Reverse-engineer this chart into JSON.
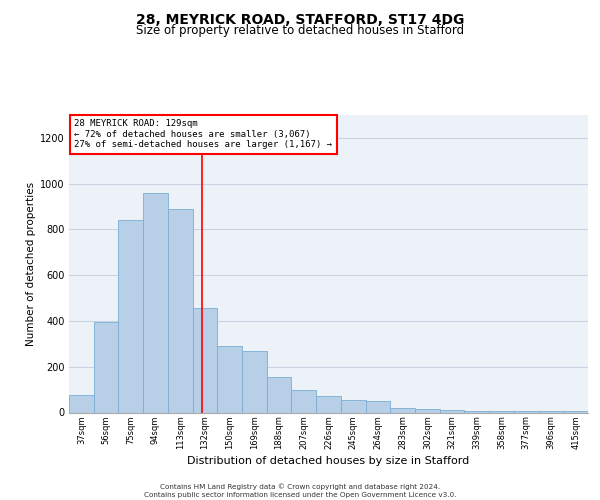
{
  "title1": "28, MEYRICK ROAD, STAFFORD, ST17 4DG",
  "title2": "Size of property relative to detached houses in Stafford",
  "xlabel": "Distribution of detached houses by size in Stafford",
  "ylabel": "Number of detached properties",
  "categories": [
    "37sqm",
    "56sqm",
    "75sqm",
    "94sqm",
    "113sqm",
    "132sqm",
    "150sqm",
    "169sqm",
    "188sqm",
    "207sqm",
    "226sqm",
    "245sqm",
    "264sqm",
    "283sqm",
    "302sqm",
    "321sqm",
    "339sqm",
    "358sqm",
    "377sqm",
    "396sqm",
    "415sqm"
  ],
  "values": [
    75,
    395,
    840,
    960,
    890,
    455,
    290,
    270,
    155,
    100,
    70,
    55,
    50,
    20,
    15,
    10,
    8,
    5,
    5,
    5,
    5
  ],
  "bar_color": "#b8cfe8",
  "bar_edgecolor": "#7aaed4",
  "grid_color": "#c8d4e4",
  "bg_color": "#edf2f8",
  "annotation_text": "28 MEYRICK ROAD: 129sqm\n← 72% of detached houses are smaller (3,067)\n27% of semi-detached houses are larger (1,167) →",
  "redline_x": 4.88,
  "ylim": [
    0,
    1300
  ],
  "yticks": [
    0,
    200,
    400,
    600,
    800,
    1000,
    1200
  ],
  "footer1": "Contains HM Land Registry data © Crown copyright and database right 2024.",
  "footer2": "Contains public sector information licensed under the Open Government Licence v3.0."
}
